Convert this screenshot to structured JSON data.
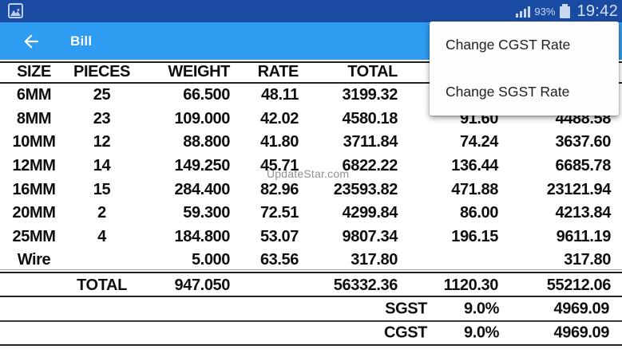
{
  "status_bar": {
    "time": "19:42",
    "battery_percent": "93%",
    "icons": [
      "screenshot-notification-icon",
      "signal-icon",
      "battery-icon"
    ]
  },
  "app_bar": {
    "title": "Bill",
    "icons": [
      "back-arrow-icon"
    ]
  },
  "menu": {
    "items": [
      {
        "label": "Change CGST Rate"
      },
      {
        "label": "Change SGST Rate"
      }
    ]
  },
  "table": {
    "headers": [
      "SIZE",
      "PIECES",
      "WEIGHT",
      "RATE",
      "TOTAL",
      "",
      ""
    ],
    "rows": [
      [
        "6MM",
        "25",
        "66.500",
        "48.11",
        "3199.32",
        "",
        ""
      ],
      [
        "8MM",
        "23",
        "109.000",
        "42.02",
        "4580.18",
        "91.60",
        "4488.58"
      ],
      [
        "10MM",
        "12",
        "88.800",
        "41.80",
        "3711.84",
        "74.24",
        "3637.60"
      ],
      [
        "12MM",
        "14",
        "149.250",
        "45.71",
        "6822.22",
        "136.44",
        "6685.78"
      ],
      [
        "16MM",
        "15",
        "284.400",
        "82.96",
        "23593.82",
        "471.88",
        "23121.94"
      ],
      [
        "20MM",
        "2",
        "59.300",
        "72.51",
        "4299.84",
        "86.00",
        "4213.84"
      ],
      [
        "25MM",
        "4",
        "184.800",
        "53.07",
        "9807.34",
        "196.15",
        "9611.19"
      ],
      [
        "Wire",
        "",
        "5.000",
        "63.56",
        "317.80",
        "",
        "317.80"
      ]
    ],
    "total_row": {
      "label": "TOTAL",
      "weight": "947.050",
      "total": "56332.36",
      "col6": "1120.30",
      "col7": "55212.06"
    },
    "tax_rows": [
      {
        "label": "SGST",
        "rate": "9.0%",
        "amount": "4969.09"
      },
      {
        "label": "CGST",
        "rate": "9.0%",
        "amount": "4969.09"
      }
    ]
  },
  "watermark": "UpdateStar.com",
  "colors": {
    "status_bar": "#1a4ba3",
    "app_bar": "#2e9cf0",
    "menu_bg": "#fdfdfd",
    "text": "#0e0e0e"
  }
}
